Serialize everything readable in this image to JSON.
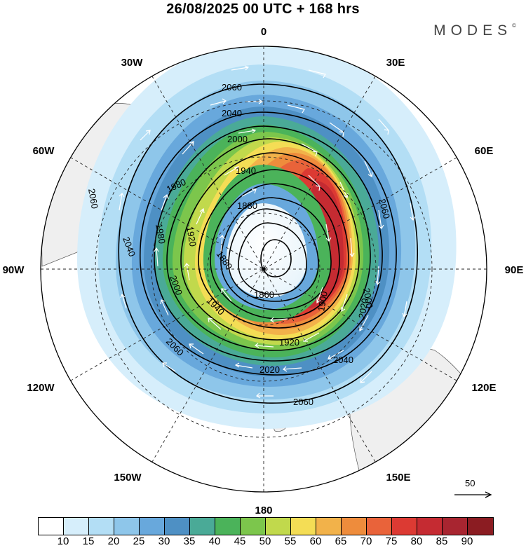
{
  "title": "26/08/2025  00 UTC  + 168 hrs",
  "brand": "MODES",
  "brand_mark": "©",
  "longitudes": {
    "lon_0": "0",
    "lon_30e": "30E",
    "lon_60e": "60E",
    "lon_90e": "90E",
    "lon_120e": "120E",
    "lon_150e": "150E",
    "lon_180": "180",
    "lon_150w": "150W",
    "lon_120w": "120W",
    "lon_90w": "90W",
    "lon_60w": "60W",
    "lon_30w": "30W"
  },
  "contour_labels": {
    "c1": "2060",
    "c2": "2040",
    "c3": "2000",
    "c4": "1940",
    "c5": "1980",
    "c6": "1880",
    "c7": "1860",
    "c8": "1900",
    "c9": "1920",
    "c10": "2000",
    "c11": "2020",
    "c12": "2040",
    "c13": "2060",
    "c14": "1880",
    "c15": "1940",
    "c16": "2000",
    "c17": "2040",
    "c18": "2060",
    "c19": "2060",
    "c20": "2020",
    "c21": "2060",
    "c22": "1920",
    "c23": "1980"
  },
  "wind_reference": {
    "label": "50"
  },
  "colorbar": {
    "colors": [
      "#ffffff",
      "#d6eefb",
      "#b3def5",
      "#8ec6ea",
      "#68a8dc",
      "#4e90c4",
      "#4aaa97",
      "#4bb35a",
      "#7cc64c",
      "#c1d94c",
      "#f4dd55",
      "#f2b24a",
      "#ee8c3c",
      "#e9633a",
      "#dc3a33",
      "#c52b32",
      "#a82530",
      "#8b1c22"
    ],
    "ticks": [
      "10",
      "15",
      "20",
      "25",
      "30",
      "35",
      "40",
      "45",
      "50",
      "55",
      "60",
      "65",
      "70",
      "75",
      "80",
      "85",
      "90"
    ]
  }
}
